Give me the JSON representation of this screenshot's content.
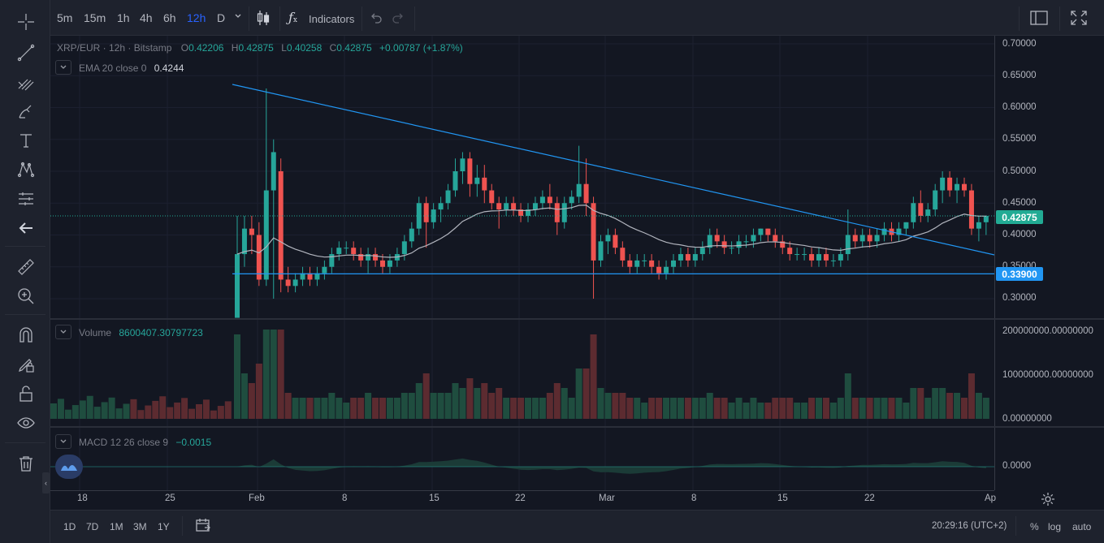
{
  "toolbar": {
    "timeframes": [
      "5m",
      "15m",
      "1h",
      "4h",
      "6h",
      "12h",
      "D"
    ],
    "active_timeframe": "12h",
    "indicators_label": "Indicators"
  },
  "legend": {
    "symbol": "XRP/EUR · 12h · Bitstamp",
    "o_label": "O",
    "o": "0.42206",
    "h_label": "H",
    "h": "0.42875",
    "l_label": "L",
    "l": "0.40258",
    "c_label": "C",
    "c": "0.42875",
    "change": "+0.00787 (+1.87%)",
    "ema_label": "EMA 20 close 0",
    "ema_value": "0.4244",
    "volume_label": "Volume",
    "volume_value": "8600407.30797723",
    "macd_label": "MACD 12 26 close 9",
    "macd_value": "−0.0015"
  },
  "price_scale": [
    "0.70000",
    "0.65000",
    "0.60000",
    "0.55000",
    "0.50000",
    "0.45000",
    "0.40000",
    "0.35000",
    "0.30000"
  ],
  "last_price_badge": "0.42875",
  "line_badge": "0.33900",
  "volume_scale": [
    "200000000.00000000",
    "100000000.00000000",
    "0.00000000"
  ],
  "macd_scale": [
    "0.0000"
  ],
  "time_axis": [
    "18",
    "25",
    "Feb",
    "8",
    "15",
    "22",
    "Mar",
    "8",
    "15",
    "22",
    "Ap"
  ],
  "bottom": {
    "ranges": [
      "1D",
      "7D",
      "1M",
      "3M",
      "1Y"
    ],
    "clock": "20:29:16 (UTC+2)",
    "percent": "%",
    "log": "log",
    "auto": "auto"
  },
  "colors": {
    "up": "#26a69a",
    "down": "#ef5350",
    "trend": "#2196f3",
    "accent": "#2962ff",
    "last": "#22ab94"
  },
  "chart_data": {
    "type": "candlestick",
    "title": "XRP/EUR · 12h · Bitstamp",
    "ylim": [
      0.27,
      0.71
    ],
    "series": [
      {
        "name": "EMA 20 close 0"
      },
      {
        "name": "Volume"
      },
      {
        "name": "MACD 12 26 close 9"
      }
    ],
    "candles": [
      [
        0.27,
        0.43,
        0.27,
        0.37
      ],
      [
        0.37,
        0.43,
        0.35,
        0.41
      ],
      [
        0.41,
        0.43,
        0.37,
        0.4
      ],
      [
        0.4,
        0.42,
        0.32,
        0.33
      ],
      [
        0.33,
        0.63,
        0.32,
        0.47
      ],
      [
        0.47,
        0.55,
        0.3,
        0.53
      ],
      [
        0.5,
        0.52,
        0.31,
        0.33
      ],
      [
        0.33,
        0.35,
        0.31,
        0.32
      ],
      [
        0.32,
        0.34,
        0.31,
        0.33
      ],
      [
        0.33,
        0.35,
        0.32,
        0.34
      ],
      [
        0.34,
        0.35,
        0.32,
        0.33
      ],
      [
        0.33,
        0.35,
        0.32,
        0.34
      ],
      [
        0.34,
        0.36,
        0.33,
        0.35
      ],
      [
        0.35,
        0.38,
        0.34,
        0.37
      ],
      [
        0.37,
        0.39,
        0.36,
        0.38
      ],
      [
        0.38,
        0.39,
        0.37,
        0.38
      ],
      [
        0.38,
        0.39,
        0.36,
        0.37
      ],
      [
        0.37,
        0.38,
        0.35,
        0.36
      ],
      [
        0.36,
        0.38,
        0.34,
        0.37
      ],
      [
        0.37,
        0.38,
        0.35,
        0.36
      ],
      [
        0.36,
        0.37,
        0.34,
        0.35
      ],
      [
        0.35,
        0.37,
        0.34,
        0.36
      ],
      [
        0.36,
        0.38,
        0.35,
        0.37
      ],
      [
        0.37,
        0.4,
        0.36,
        0.39
      ],
      [
        0.39,
        0.42,
        0.38,
        0.41
      ],
      [
        0.41,
        0.46,
        0.4,
        0.45
      ],
      [
        0.45,
        0.46,
        0.38,
        0.42
      ],
      [
        0.42,
        0.45,
        0.41,
        0.44
      ],
      [
        0.44,
        0.46,
        0.42,
        0.45
      ],
      [
        0.45,
        0.48,
        0.44,
        0.47
      ],
      [
        0.47,
        0.52,
        0.46,
        0.5
      ],
      [
        0.5,
        0.53,
        0.48,
        0.52
      ],
      [
        0.52,
        0.53,
        0.46,
        0.48
      ],
      [
        0.48,
        0.51,
        0.46,
        0.49
      ],
      [
        0.49,
        0.51,
        0.45,
        0.47
      ],
      [
        0.47,
        0.48,
        0.44,
        0.45
      ],
      [
        0.45,
        0.46,
        0.41,
        0.44
      ],
      [
        0.44,
        0.46,
        0.43,
        0.45
      ],
      [
        0.45,
        0.46,
        0.43,
        0.44
      ],
      [
        0.44,
        0.45,
        0.42,
        0.43
      ],
      [
        0.43,
        0.45,
        0.42,
        0.44
      ],
      [
        0.44,
        0.46,
        0.43,
        0.45
      ],
      [
        0.45,
        0.47,
        0.44,
        0.46
      ],
      [
        0.46,
        0.48,
        0.44,
        0.45
      ],
      [
        0.45,
        0.46,
        0.4,
        0.42
      ],
      [
        0.42,
        0.46,
        0.41,
        0.45
      ],
      [
        0.45,
        0.47,
        0.44,
        0.46
      ],
      [
        0.46,
        0.54,
        0.45,
        0.48
      ],
      [
        0.48,
        0.52,
        0.43,
        0.45
      ],
      [
        0.45,
        0.46,
        0.3,
        0.36
      ],
      [
        0.36,
        0.4,
        0.35,
        0.39
      ],
      [
        0.39,
        0.41,
        0.37,
        0.4
      ],
      [
        0.4,
        0.41,
        0.37,
        0.38
      ],
      [
        0.38,
        0.39,
        0.35,
        0.36
      ],
      [
        0.36,
        0.37,
        0.34,
        0.35
      ],
      [
        0.35,
        0.37,
        0.34,
        0.36
      ],
      [
        0.36,
        0.37,
        0.35,
        0.36
      ],
      [
        0.36,
        0.37,
        0.34,
        0.35
      ],
      [
        0.35,
        0.36,
        0.33,
        0.34
      ],
      [
        0.34,
        0.36,
        0.33,
        0.35
      ],
      [
        0.35,
        0.37,
        0.34,
        0.36
      ],
      [
        0.36,
        0.38,
        0.35,
        0.37
      ],
      [
        0.37,
        0.38,
        0.35,
        0.36
      ],
      [
        0.36,
        0.38,
        0.35,
        0.37
      ],
      [
        0.37,
        0.39,
        0.36,
        0.38
      ],
      [
        0.38,
        0.41,
        0.37,
        0.4
      ],
      [
        0.4,
        0.41,
        0.38,
        0.39
      ],
      [
        0.39,
        0.4,
        0.37,
        0.38
      ],
      [
        0.38,
        0.39,
        0.37,
        0.38
      ],
      [
        0.38,
        0.4,
        0.37,
        0.39
      ],
      [
        0.39,
        0.4,
        0.38,
        0.39
      ],
      [
        0.39,
        0.41,
        0.38,
        0.4
      ],
      [
        0.4,
        0.41,
        0.39,
        0.41
      ],
      [
        0.41,
        0.41,
        0.39,
        0.4
      ],
      [
        0.4,
        0.41,
        0.38,
        0.39
      ],
      [
        0.39,
        0.4,
        0.37,
        0.38
      ],
      [
        0.38,
        0.39,
        0.36,
        0.37
      ],
      [
        0.37,
        0.38,
        0.36,
        0.37
      ],
      [
        0.37,
        0.38,
        0.36,
        0.37
      ],
      [
        0.37,
        0.38,
        0.35,
        0.36
      ],
      [
        0.36,
        0.38,
        0.35,
        0.37
      ],
      [
        0.37,
        0.38,
        0.35,
        0.36
      ],
      [
        0.36,
        0.37,
        0.35,
        0.36
      ],
      [
        0.36,
        0.38,
        0.35,
        0.37
      ],
      [
        0.37,
        0.44,
        0.36,
        0.4
      ],
      [
        0.4,
        0.41,
        0.38,
        0.39
      ],
      [
        0.39,
        0.41,
        0.38,
        0.4
      ],
      [
        0.4,
        0.41,
        0.38,
        0.39
      ],
      [
        0.39,
        0.41,
        0.38,
        0.4
      ],
      [
        0.4,
        0.42,
        0.39,
        0.41
      ],
      [
        0.41,
        0.42,
        0.39,
        0.4
      ],
      [
        0.4,
        0.42,
        0.39,
        0.41
      ],
      [
        0.41,
        0.42,
        0.4,
        0.42
      ],
      [
        0.42,
        0.46,
        0.41,
        0.45
      ],
      [
        0.45,
        0.47,
        0.42,
        0.43
      ],
      [
        0.43,
        0.45,
        0.42,
        0.44
      ],
      [
        0.44,
        0.48,
        0.43,
        0.47
      ],
      [
        0.47,
        0.5,
        0.45,
        0.49
      ],
      [
        0.49,
        0.5,
        0.46,
        0.47
      ],
      [
        0.47,
        0.49,
        0.45,
        0.48
      ],
      [
        0.48,
        0.49,
        0.46,
        0.47
      ],
      [
        0.47,
        0.48,
        0.4,
        0.41
      ],
      [
        0.41,
        0.43,
        0.39,
        0.42
      ],
      [
        0.42,
        0.43,
        0.4,
        0.43
      ]
    ]
  }
}
